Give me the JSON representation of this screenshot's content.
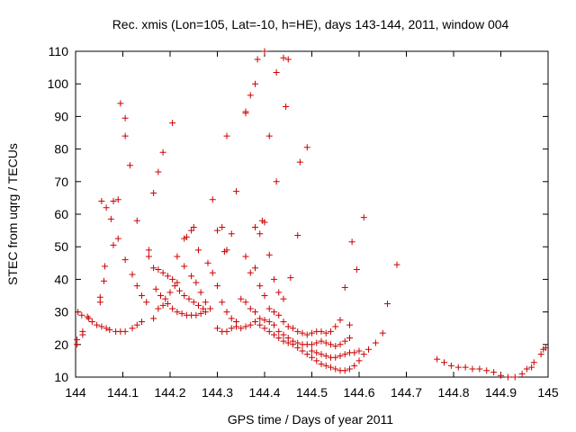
{
  "chart_data": {
    "type": "scatter",
    "title": "Rec. xmis (Lon=105, Lat=-10, h=HE), days 143-144, 2011, window 004",
    "xlabel": "GPS time / Days of year 2011",
    "ylabel": "STEC from uqrg / TECUs",
    "xlim": [
      144,
      145
    ],
    "ylim": [
      10,
      110
    ],
    "xticks": [
      144,
      144.1,
      144.2,
      144.3,
      144.4,
      144.5,
      144.6,
      144.7,
      144.8,
      144.9,
      145
    ],
    "xtick_labels": [
      "144",
      "144.1",
      "144.2",
      "144.3",
      "144.4",
      "144.5",
      "144.6",
      "144.7",
      "144.8",
      "144.9",
      "145"
    ],
    "yticks": [
      10,
      20,
      30,
      40,
      50,
      60,
      70,
      80,
      90,
      100,
      110
    ],
    "ytick_labels": [
      "10",
      "20",
      "30",
      "40",
      "50",
      "60",
      "70",
      "80",
      "90",
      "100",
      "110"
    ],
    "grid": false,
    "marker": "+",
    "marker_color": "#cc0000",
    "series": [
      {
        "points": [
          [
            144.003,
            20
          ],
          [
            144.003,
            21.5
          ],
          [
            144.005,
            30
          ],
          [
            144.013,
            29
          ],
          [
            144.015,
            24
          ],
          [
            144.015,
            23
          ],
          [
            144.025,
            28.5
          ],
          [
            144.028,
            28
          ],
          [
            144.035,
            27
          ],
          [
            144.045,
            26
          ],
          [
            144.055,
            25.5
          ],
          [
            144.065,
            25
          ],
          [
            144.072,
            24.5
          ],
          [
            144.085,
            24
          ],
          [
            144.095,
            24
          ],
          [
            144.105,
            24
          ],
          [
            144.12,
            25
          ],
          [
            144.13,
            26
          ],
          [
            144.14,
            27
          ],
          [
            144.052,
            33
          ],
          [
            144.052,
            34.5
          ],
          [
            144.06,
            39.5
          ],
          [
            144.062,
            44
          ],
          [
            144.08,
            50.5
          ],
          [
            144.09,
            52.5
          ],
          [
            144.055,
            64
          ],
          [
            144.065,
            62
          ],
          [
            144.075,
            58.5
          ],
          [
            144.08,
            64
          ],
          [
            144.09,
            64.5
          ],
          [
            144.095,
            94
          ],
          [
            144.105,
            89.5
          ],
          [
            144.105,
            84
          ],
          [
            144.115,
            75
          ],
          [
            144.13,
            58
          ],
          [
            144.105,
            46
          ],
          [
            144.12,
            41.5
          ],
          [
            144.13,
            38
          ],
          [
            144.14,
            35
          ],
          [
            144.15,
            33
          ],
          [
            144.155,
            47
          ],
          [
            144.165,
            43.5
          ],
          [
            144.175,
            43
          ],
          [
            144.185,
            42
          ],
          [
            144.195,
            41
          ],
          [
            144.205,
            40
          ],
          [
            144.215,
            39
          ],
          [
            144.155,
            49
          ],
          [
            144.165,
            66.5
          ],
          [
            144.175,
            73
          ],
          [
            144.185,
            79
          ],
          [
            144.205,
            88
          ],
          [
            144.165,
            28
          ],
          [
            144.175,
            31
          ],
          [
            144.185,
            32
          ],
          [
            144.195,
            32.5
          ],
          [
            144.205,
            31
          ],
          [
            144.215,
            30
          ],
          [
            144.225,
            29.5
          ],
          [
            144.235,
            29
          ],
          [
            144.245,
            29
          ],
          [
            144.255,
            29
          ],
          [
            144.265,
            29.5
          ],
          [
            144.275,
            30
          ],
          [
            144.17,
            37
          ],
          [
            144.18,
            35
          ],
          [
            144.19,
            34
          ],
          [
            144.2,
            36
          ],
          [
            144.21,
            38
          ],
          [
            144.22,
            36.5
          ],
          [
            144.23,
            35
          ],
          [
            144.24,
            34
          ],
          [
            144.25,
            33
          ],
          [
            144.26,
            32
          ],
          [
            144.27,
            31
          ],
          [
            144.215,
            47
          ],
          [
            144.23,
            52.5
          ],
          [
            144.235,
            53
          ],
          [
            144.245,
            55
          ],
          [
            144.25,
            56
          ],
          [
            144.26,
            49
          ],
          [
            144.23,
            44
          ],
          [
            144.245,
            41
          ],
          [
            144.255,
            39
          ],
          [
            144.265,
            36
          ],
          [
            144.275,
            33
          ],
          [
            144.285,
            31
          ],
          [
            144.28,
            45
          ],
          [
            144.29,
            42
          ],
          [
            144.3,
            38
          ],
          [
            144.31,
            33
          ],
          [
            144.32,
            30
          ],
          [
            144.33,
            28
          ],
          [
            144.34,
            27
          ],
          [
            144.29,
            64.5
          ],
          [
            144.3,
            55
          ],
          [
            144.31,
            56
          ],
          [
            144.315,
            48.5
          ],
          [
            144.32,
            49
          ],
          [
            144.33,
            54
          ],
          [
            144.32,
            84
          ],
          [
            144.34,
            67
          ],
          [
            144.36,
            91.5
          ],
          [
            144.36,
            91
          ],
          [
            144.37,
            96.5
          ],
          [
            144.38,
            100
          ],
          [
            144.385,
            107.5
          ],
          [
            144.4,
            110
          ],
          [
            144.41,
            84
          ],
          [
            144.425,
            103.5
          ],
          [
            144.425,
            70
          ],
          [
            144.44,
            108
          ],
          [
            144.445,
            93
          ],
          [
            144.45,
            107.5
          ],
          [
            144.475,
            76
          ],
          [
            144.49,
            80.5
          ],
          [
            144.3,
            25
          ],
          [
            144.31,
            24
          ],
          [
            144.32,
            24
          ],
          [
            144.33,
            25
          ],
          [
            144.34,
            25.5
          ],
          [
            144.35,
            25
          ],
          [
            144.36,
            25.5
          ],
          [
            144.37,
            26
          ],
          [
            144.38,
            27
          ],
          [
            144.39,
            26
          ],
          [
            144.4,
            25
          ],
          [
            144.41,
            24
          ],
          [
            144.42,
            23
          ],
          [
            144.43,
            22
          ],
          [
            144.44,
            21
          ],
          [
            144.45,
            20.5
          ],
          [
            144.46,
            20
          ],
          [
            144.47,
            19
          ],
          [
            144.48,
            18
          ],
          [
            144.49,
            17
          ],
          [
            144.5,
            16
          ],
          [
            144.51,
            15
          ],
          [
            144.52,
            14
          ],
          [
            144.53,
            13.5
          ],
          [
            144.54,
            13
          ],
          [
            144.55,
            12.5
          ],
          [
            144.56,
            12
          ],
          [
            144.57,
            12
          ],
          [
            144.58,
            12.5
          ],
          [
            144.59,
            13.5
          ],
          [
            144.6,
            15
          ],
          [
            144.61,
            17
          ],
          [
            144.62,
            18.5
          ],
          [
            144.635,
            20.5
          ],
          [
            144.35,
            34
          ],
          [
            144.36,
            33
          ],
          [
            144.37,
            31
          ],
          [
            144.38,
            30
          ],
          [
            144.39,
            28
          ],
          [
            144.4,
            27.5
          ],
          [
            144.41,
            27
          ],
          [
            144.42,
            26
          ],
          [
            144.43,
            24
          ],
          [
            144.44,
            23
          ],
          [
            144.45,
            22
          ],
          [
            144.46,
            21
          ],
          [
            144.47,
            20.5
          ],
          [
            144.48,
            20
          ],
          [
            144.49,
            20
          ],
          [
            144.5,
            20
          ],
          [
            144.51,
            20.5
          ],
          [
            144.52,
            21
          ],
          [
            144.53,
            20.5
          ],
          [
            144.54,
            20
          ],
          [
            144.55,
            19.5
          ],
          [
            144.56,
            20
          ],
          [
            144.57,
            21
          ],
          [
            144.58,
            22
          ],
          [
            144.36,
            47
          ],
          [
            144.37,
            42
          ],
          [
            144.38,
            43.5
          ],
          [
            144.39,
            38
          ],
          [
            144.4,
            35
          ],
          [
            144.41,
            31
          ],
          [
            144.42,
            30
          ],
          [
            144.43,
            29
          ],
          [
            144.44,
            27
          ],
          [
            144.45,
            25.5
          ],
          [
            144.46,
            25
          ],
          [
            144.47,
            24
          ],
          [
            144.48,
            23.5
          ],
          [
            144.49,
            23
          ],
          [
            144.5,
            23.5
          ],
          [
            144.51,
            24
          ],
          [
            144.52,
            24
          ],
          [
            144.53,
            23.5
          ],
          [
            144.54,
            24
          ],
          [
            144.55,
            25.5
          ],
          [
            144.56,
            27.5
          ],
          [
            144.38,
            56
          ],
          [
            144.39,
            54
          ],
          [
            144.395,
            58
          ],
          [
            144.4,
            57.5
          ],
          [
            144.41,
            47.5
          ],
          [
            144.42,
            40
          ],
          [
            144.43,
            36
          ],
          [
            144.44,
            34
          ],
          [
            144.455,
            40.5
          ],
          [
            144.47,
            53.5
          ],
          [
            144.5,
            18
          ],
          [
            144.51,
            17.5
          ],
          [
            144.52,
            17
          ],
          [
            144.53,
            16.5
          ],
          [
            144.54,
            16
          ],
          [
            144.55,
            16
          ],
          [
            144.56,
            16.5
          ],
          [
            144.57,
            17
          ],
          [
            144.58,
            17.5
          ],
          [
            144.59,
            17.5
          ],
          [
            144.6,
            18
          ],
          [
            144.57,
            37.5
          ],
          [
            144.58,
            26
          ],
          [
            144.585,
            51.5
          ],
          [
            144.595,
            43
          ],
          [
            144.61,
            59
          ],
          [
            144.66,
            32.5
          ],
          [
            144.68,
            44.5
          ],
          [
            144.65,
            23.5
          ],
          [
            144.765,
            15.5
          ],
          [
            144.78,
            14.5
          ],
          [
            144.795,
            13.5
          ],
          [
            144.81,
            13
          ],
          [
            144.825,
            13
          ],
          [
            144.84,
            12.5
          ],
          [
            144.855,
            12.5
          ],
          [
            144.87,
            12
          ],
          [
            144.885,
            11.5
          ],
          [
            144.9,
            10.5
          ],
          [
            144.915,
            10
          ],
          [
            144.93,
            10
          ],
          [
            144.945,
            11
          ],
          [
            144.955,
            12.5
          ],
          [
            144.965,
            13
          ],
          [
            144.97,
            14.5
          ],
          [
            144.985,
            17
          ],
          [
            144.99,
            18.5
          ],
          [
            144.995,
            19
          ]
        ]
      }
    ]
  }
}
